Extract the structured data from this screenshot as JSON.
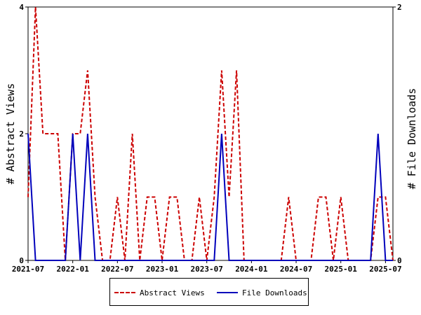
{
  "chart_data": {
    "type": "line",
    "left_axis": {
      "label": "# Abstract Views",
      "ticks": [
        "0",
        "2",
        "4"
      ],
      "ylim": [
        0,
        4
      ]
    },
    "right_axis": {
      "label": "# File Downloads",
      "ticks": [
        "0",
        "2"
      ],
      "ylim": [
        0,
        2
      ]
    },
    "x_tick_labels": [
      "2021-07",
      "2022-01",
      "2022-07",
      "2023-01",
      "2023-07",
      "2024-01",
      "2024-07",
      "2025-01",
      "2025-07"
    ],
    "x_range": [
      "2021-07",
      "2025-08"
    ],
    "grid": false,
    "legend_position": "bottom-center",
    "series": [
      {
        "name": "Abstract Views",
        "axis": "left",
        "color": "#cc0000",
        "style": "dashed",
        "points": [
          [
            "2021-07",
            1
          ],
          [
            "2021-08",
            4
          ],
          [
            "2021-09",
            2
          ],
          [
            "2021-10",
            2
          ],
          [
            "2021-11",
            2
          ],
          [
            "2021-12",
            0
          ],
          [
            "2022-01",
            2
          ],
          [
            "2022-02",
            2
          ],
          [
            "2022-03",
            3
          ],
          [
            "2022-04",
            1
          ],
          [
            "2022-05",
            0
          ],
          [
            "2022-06",
            0
          ],
          [
            "2022-07",
            1
          ],
          [
            "2022-08",
            0
          ],
          [
            "2022-09",
            2
          ],
          [
            "2022-10",
            0
          ],
          [
            "2022-11",
            1
          ],
          [
            "2022-12",
            1
          ],
          [
            "2023-01",
            0
          ],
          [
            "2023-02",
            1
          ],
          [
            "2023-03",
            1
          ],
          [
            "2023-04",
            0
          ],
          [
            "2023-05",
            0
          ],
          [
            "2023-06",
            1
          ],
          [
            "2023-07",
            0
          ],
          [
            "2023-08",
            1
          ],
          [
            "2023-09",
            3
          ],
          [
            "2023-10",
            1
          ],
          [
            "2023-11",
            3
          ],
          [
            "2023-12",
            0
          ],
          [
            "2024-01",
            0
          ],
          [
            "2024-02",
            0
          ],
          [
            "2024-03",
            0
          ],
          [
            "2024-04",
            0
          ],
          [
            "2024-05",
            0
          ],
          [
            "2024-06",
            1
          ],
          [
            "2024-07",
            0
          ],
          [
            "2024-08",
            0
          ],
          [
            "2024-09",
            0
          ],
          [
            "2024-10",
            1
          ],
          [
            "2024-11",
            1
          ],
          [
            "2024-12",
            0
          ],
          [
            "2025-01",
            1
          ],
          [
            "2025-02",
            0
          ],
          [
            "2025-03",
            0
          ],
          [
            "2025-04",
            0
          ],
          [
            "2025-05",
            0
          ],
          [
            "2025-06",
            1
          ],
          [
            "2025-07",
            1
          ],
          [
            "2025-08",
            0
          ]
        ]
      },
      {
        "name": "File Downloads",
        "axis": "right",
        "color": "#0000bb",
        "style": "solid",
        "points": [
          [
            "2021-07",
            1
          ],
          [
            "2021-08",
            0
          ],
          [
            "2021-09",
            0
          ],
          [
            "2021-10",
            0
          ],
          [
            "2021-11",
            0
          ],
          [
            "2021-12",
            0
          ],
          [
            "2022-01",
            1
          ],
          [
            "2022-02",
            0
          ],
          [
            "2022-03",
            1
          ],
          [
            "2022-04",
            0
          ],
          [
            "2022-05",
            0
          ],
          [
            "2022-06",
            0
          ],
          [
            "2022-07",
            0
          ],
          [
            "2022-08",
            0
          ],
          [
            "2022-09",
            0
          ],
          [
            "2022-10",
            0
          ],
          [
            "2022-11",
            0
          ],
          [
            "2022-12",
            0
          ],
          [
            "2023-01",
            0
          ],
          [
            "2023-02",
            0
          ],
          [
            "2023-03",
            0
          ],
          [
            "2023-04",
            0
          ],
          [
            "2023-05",
            0
          ],
          [
            "2023-06",
            0
          ],
          [
            "2023-07",
            0
          ],
          [
            "2023-08",
            0
          ],
          [
            "2023-09",
            1
          ],
          [
            "2023-10",
            0
          ],
          [
            "2023-11",
            0
          ],
          [
            "2023-12",
            0
          ],
          [
            "2024-01",
            0
          ],
          [
            "2024-02",
            0
          ],
          [
            "2024-03",
            0
          ],
          [
            "2024-04",
            0
          ],
          [
            "2024-05",
            0
          ],
          [
            "2024-06",
            0
          ],
          [
            "2024-07",
            0
          ],
          [
            "2024-08",
            0
          ],
          [
            "2024-09",
            0
          ],
          [
            "2024-10",
            0
          ],
          [
            "2024-11",
            0
          ],
          [
            "2024-12",
            0
          ],
          [
            "2025-01",
            0
          ],
          [
            "2025-02",
            0
          ],
          [
            "2025-03",
            0
          ],
          [
            "2025-04",
            0
          ],
          [
            "2025-05",
            0
          ],
          [
            "2025-06",
            1
          ],
          [
            "2025-07",
            0
          ],
          [
            "2025-08",
            0
          ]
        ]
      }
    ]
  }
}
